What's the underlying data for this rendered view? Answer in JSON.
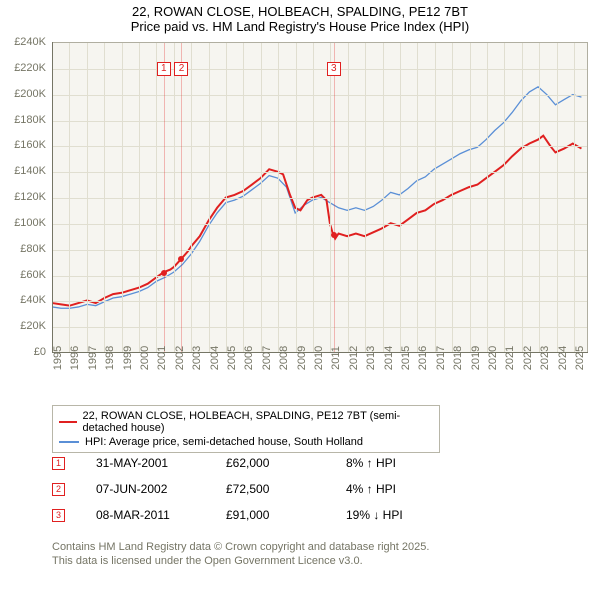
{
  "title_line1": "22, ROWAN CLOSE, HOLBEACH, SPALDING, PE12 7BT",
  "title_line2": "Price paid vs. HM Land Registry's House Price Index (HPI)",
  "chart": {
    "type": "line",
    "background_color": "#f6f5f0",
    "grid_color": "#e0ded0",
    "axis_color": "#757565",
    "xlim": [
      1995,
      2025.8
    ],
    "ylim": [
      0,
      240000
    ],
    "ytick_step": 20000,
    "y_ticks": [
      "£0",
      "£20K",
      "£40K",
      "£60K",
      "£80K",
      "£100K",
      "£120K",
      "£140K",
      "£160K",
      "£180K",
      "£200K",
      "£220K",
      "£240K"
    ],
    "x_ticks": [
      1995,
      1996,
      1997,
      1998,
      1999,
      2000,
      2001,
      2002,
      2003,
      2004,
      2005,
      2006,
      2007,
      2008,
      2009,
      2010,
      2011,
      2012,
      2013,
      2014,
      2015,
      2016,
      2017,
      2018,
      2019,
      2020,
      2021,
      2022,
      2023,
      2024,
      2025
    ],
    "series": [
      {
        "name": "property",
        "color": "#e02020",
        "width": 2,
        "data": [
          [
            1995,
            38000
          ],
          [
            1995.5,
            37000
          ],
          [
            1996,
            36000
          ],
          [
            1996.5,
            38000
          ],
          [
            1997,
            40000
          ],
          [
            1997.5,
            38000
          ],
          [
            1998,
            42000
          ],
          [
            1998.5,
            45000
          ],
          [
            1999,
            46000
          ],
          [
            1999.5,
            48000
          ],
          [
            2000,
            50000
          ],
          [
            2000.5,
            53000
          ],
          [
            2001,
            58000
          ],
          [
            2001.42,
            62000
          ],
          [
            2001.8,
            64000
          ],
          [
            2002,
            66000
          ],
          [
            2002.44,
            72500
          ],
          [
            2002.8,
            78000
          ],
          [
            2003,
            82000
          ],
          [
            2003.5,
            90000
          ],
          [
            2004,
            102000
          ],
          [
            2004.5,
            112000
          ],
          [
            2005,
            120000
          ],
          [
            2005.5,
            122000
          ],
          [
            2006,
            125000
          ],
          [
            2006.5,
            130000
          ],
          [
            2007,
            135000
          ],
          [
            2007.5,
            142000
          ],
          [
            2008,
            140000
          ],
          [
            2008.3,
            138000
          ],
          [
            2008.7,
            122000
          ],
          [
            2009,
            112000
          ],
          [
            2009.3,
            110000
          ],
          [
            2009.7,
            118000
          ],
          [
            2010,
            120000
          ],
          [
            2010.5,
            122000
          ],
          [
            2010.8,
            118000
          ],
          [
            2011,
            100000
          ],
          [
            2011.19,
            91000
          ],
          [
            2011.3,
            88000
          ],
          [
            2011.5,
            92000
          ],
          [
            2012,
            90000
          ],
          [
            2012.5,
            92000
          ],
          [
            2013,
            90000
          ],
          [
            2013.5,
            93000
          ],
          [
            2014,
            96000
          ],
          [
            2014.5,
            100000
          ],
          [
            2015,
            98000
          ],
          [
            2015.5,
            103000
          ],
          [
            2016,
            108000
          ],
          [
            2016.5,
            110000
          ],
          [
            2017,
            115000
          ],
          [
            2017.5,
            118000
          ],
          [
            2018,
            122000
          ],
          [
            2018.5,
            125000
          ],
          [
            2019,
            128000
          ],
          [
            2019.5,
            130000
          ],
          [
            2020,
            135000
          ],
          [
            2020.5,
            140000
          ],
          [
            2021,
            145000
          ],
          [
            2021.5,
            152000
          ],
          [
            2022,
            158000
          ],
          [
            2022.5,
            162000
          ],
          [
            2023,
            165000
          ],
          [
            2023.3,
            168000
          ],
          [
            2023.7,
            160000
          ],
          [
            2024,
            155000
          ],
          [
            2024.5,
            158000
          ],
          [
            2025,
            162000
          ],
          [
            2025.5,
            158000
          ]
        ]
      },
      {
        "name": "hpi",
        "color": "#5a8fd6",
        "width": 1.3,
        "data": [
          [
            1995,
            35000
          ],
          [
            1995.5,
            34000
          ],
          [
            1996,
            34000
          ],
          [
            1996.5,
            35000
          ],
          [
            1997,
            37000
          ],
          [
            1997.5,
            36000
          ],
          [
            1998,
            39000
          ],
          [
            1998.5,
            42000
          ],
          [
            1999,
            43000
          ],
          [
            1999.5,
            45000
          ],
          [
            2000,
            47000
          ],
          [
            2000.5,
            50000
          ],
          [
            2001,
            55000
          ],
          [
            2001.5,
            58000
          ],
          [
            2002,
            62000
          ],
          [
            2002.5,
            68000
          ],
          [
            2003,
            76000
          ],
          [
            2003.5,
            86000
          ],
          [
            2004,
            98000
          ],
          [
            2004.5,
            108000
          ],
          [
            2005,
            116000
          ],
          [
            2005.5,
            118000
          ],
          [
            2006,
            121000
          ],
          [
            2006.5,
            126000
          ],
          [
            2007,
            131000
          ],
          [
            2007.5,
            137000
          ],
          [
            2008,
            135000
          ],
          [
            2008.5,
            128000
          ],
          [
            2009,
            108000
          ],
          [
            2009.5,
            114000
          ],
          [
            2010,
            118000
          ],
          [
            2010.5,
            120000
          ],
          [
            2011,
            116000
          ],
          [
            2011.5,
            112000
          ],
          [
            2012,
            110000
          ],
          [
            2012.5,
            112000
          ],
          [
            2013,
            110000
          ],
          [
            2013.5,
            113000
          ],
          [
            2014,
            118000
          ],
          [
            2014.5,
            124000
          ],
          [
            2015,
            122000
          ],
          [
            2015.5,
            127000
          ],
          [
            2016,
            133000
          ],
          [
            2016.5,
            136000
          ],
          [
            2017,
            142000
          ],
          [
            2017.5,
            146000
          ],
          [
            2018,
            150000
          ],
          [
            2018.5,
            154000
          ],
          [
            2019,
            157000
          ],
          [
            2019.5,
            159000
          ],
          [
            2020,
            165000
          ],
          [
            2020.5,
            172000
          ],
          [
            2021,
            178000
          ],
          [
            2021.5,
            186000
          ],
          [
            2022,
            195000
          ],
          [
            2022.5,
            202000
          ],
          [
            2023,
            206000
          ],
          [
            2023.5,
            200000
          ],
          [
            2024,
            192000
          ],
          [
            2024.5,
            196000
          ],
          [
            2025,
            200000
          ],
          [
            2025.5,
            198000
          ]
        ]
      }
    ],
    "markers": [
      {
        "n": "1",
        "x": 2001.42,
        "y": 62000,
        "label_y": 220000
      },
      {
        "n": "2",
        "x": 2002.44,
        "y": 72500,
        "label_y": 220000
      },
      {
        "n": "3",
        "x": 2011.19,
        "y": 91000,
        "label_y": 220000
      }
    ]
  },
  "legend": [
    {
      "color": "#e02020",
      "label": "22, ROWAN CLOSE, HOLBEACH, SPALDING, PE12 7BT (semi-detached house)"
    },
    {
      "color": "#5a8fd6",
      "label": "HPI: Average price, semi-detached house, South Holland"
    }
  ],
  "table": [
    {
      "n": "1",
      "date": "31-MAY-2001",
      "price": "£62,000",
      "pct": "8% ↑ HPI"
    },
    {
      "n": "2",
      "date": "07-JUN-2002",
      "price": "£72,500",
      "pct": "4% ↑ HPI"
    },
    {
      "n": "3",
      "date": "08-MAR-2011",
      "price": "£91,000",
      "pct": "19% ↓ HPI"
    }
  ],
  "footer_line1": "Contains HM Land Registry data © Crown copyright and database right 2025.",
  "footer_line2": "This data is licensed under the Open Government Licence v3.0."
}
